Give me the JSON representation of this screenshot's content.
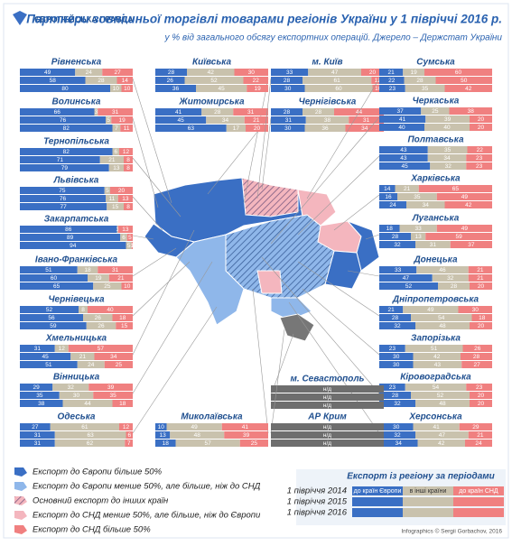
{
  "header": {
    "logo": "ЄВРОПЕЙСЬКА ПРАВДА",
    "title": "Партнери зовнішньої торгівлі товарами регіонів України у 1 півріччі 2016 р.",
    "subtitle": "у % від загального обсягу експортних операцій. Джерело – Держстат України"
  },
  "regions": [
    {
      "name": "Рівненська",
      "rows": [
        [
          49,
          24,
          27
        ],
        [
          58,
          28,
          14
        ],
        [
          80,
          10,
          10
        ]
      ]
    },
    {
      "name": "Волинська",
      "rows": [
        [
          66,
          3,
          31
        ],
        [
          76,
          5,
          19
        ],
        [
          82,
          7,
          11
        ]
      ]
    },
    {
      "name": "Тернопільська",
      "rows": [
        [
          82,
          6,
          12
        ],
        [
          71,
          21,
          8
        ],
        [
          79,
          13,
          8
        ]
      ]
    },
    {
      "name": "Львівська",
      "rows": [
        [
          75,
          5,
          20
        ],
        [
          76,
          11,
          13
        ],
        [
          77,
          15,
          8
        ]
      ]
    },
    {
      "name": "Закарпатська",
      "rows": [
        [
          86,
          1,
          13
        ],
        [
          89,
          6,
          5
        ],
        [
          94,
          5,
          1
        ]
      ]
    },
    {
      "name": "Івано-Франківська",
      "rows": [
        [
          51,
          18,
          31
        ],
        [
          60,
          19,
          21
        ],
        [
          65,
          25,
          10
        ]
      ]
    },
    {
      "name": "Чернівецька",
      "rows": [
        [
          52,
          8,
          40
        ],
        [
          56,
          26,
          18
        ],
        [
          59,
          26,
          15
        ]
      ]
    },
    {
      "name": "Хмельницька",
      "rows": [
        [
          31,
          12,
          57
        ],
        [
          45,
          21,
          34
        ],
        [
          51,
          24,
          25
        ]
      ]
    },
    {
      "name": "Вінницька",
      "rows": [
        [
          29,
          32,
          39
        ],
        [
          35,
          30,
          35
        ],
        [
          38,
          44,
          18
        ]
      ]
    },
    {
      "name": "Одеська",
      "rows": [
        [
          27,
          61,
          12
        ],
        [
          31,
          63,
          6
        ],
        [
          31,
          62,
          7
        ]
      ]
    },
    {
      "name": "Київська",
      "rows": [
        [
          28,
          42,
          30
        ],
        [
          26,
          52,
          22
        ],
        [
          36,
          45,
          19
        ]
      ]
    },
    {
      "name": "Житомирська",
      "rows": [
        [
          41,
          28,
          31
        ],
        [
          45,
          34,
          21
        ],
        [
          63,
          17,
          20
        ]
      ]
    },
    {
      "name": "Миколаївська",
      "rows": [
        [
          10,
          49,
          41
        ],
        [
          13,
          48,
          39
        ],
        [
          18,
          57,
          25
        ]
      ]
    },
    {
      "name": "м. Київ",
      "rows": [
        [
          33,
          47,
          20
        ],
        [
          28,
          61,
          11
        ],
        [
          30,
          60,
          10
        ]
      ]
    },
    {
      "name": "Чернігівська",
      "rows": [
        [
          28,
          28,
          44
        ],
        [
          31,
          38,
          31
        ],
        [
          30,
          36,
          34
        ]
      ]
    },
    {
      "name": "Сумська",
      "rows": [
        [
          21,
          19,
          60
        ],
        [
          22,
          28,
          50
        ],
        [
          23,
          35,
          42
        ]
      ]
    },
    {
      "name": "Черкаська",
      "rows": [
        [
          37,
          25,
          38
        ],
        [
          41,
          39,
          20
        ],
        [
          40,
          40,
          20
        ]
      ]
    },
    {
      "name": "Полтавська",
      "rows": [
        [
          43,
          35,
          22
        ],
        [
          43,
          34,
          23
        ],
        [
          45,
          32,
          23
        ]
      ]
    },
    {
      "name": "Харківська",
      "rows": [
        [
          14,
          21,
          65
        ],
        [
          16,
          35,
          49
        ],
        [
          24,
          34,
          42
        ]
      ]
    },
    {
      "name": "Луганська",
      "rows": [
        [
          18,
          33,
          49
        ],
        [
          28,
          13,
          59
        ],
        [
          32,
          31,
          37
        ]
      ]
    },
    {
      "name": "Донецька",
      "rows": [
        [
          33,
          46,
          21
        ],
        [
          47,
          32,
          21
        ],
        [
          52,
          28,
          20
        ]
      ]
    },
    {
      "name": "Дніпропетровська",
      "rows": [
        [
          21,
          49,
          30
        ],
        [
          28,
          54,
          18
        ],
        [
          32,
          48,
          20
        ]
      ]
    },
    {
      "name": "Запорізька",
      "rows": [
        [
          23,
          51,
          26
        ],
        [
          30,
          42,
          28
        ],
        [
          30,
          43,
          27
        ]
      ]
    },
    {
      "name": "Кіровоградська",
      "rows": [
        [
          23,
          54,
          23
        ],
        [
          28,
          52,
          20
        ],
        [
          32,
          48,
          20
        ]
      ]
    },
    {
      "name": "Херсонська",
      "rows": [
        [
          30,
          41,
          29
        ],
        [
          32,
          47,
          21
        ],
        [
          34,
          42,
          24
        ]
      ]
    },
    {
      "name": "м. Севастополь",
      "rows": [
        "н/д",
        "н/д",
        "н/д"
      ]
    },
    {
      "name": "АР Крим",
      "rows": [
        "н/д",
        "н/д",
        "н/д"
      ]
    }
  ],
  "legend": {
    "items": [
      "Експорт до Європи більше 50%",
      "Експорт до Європи менше 50%, але більше, ніж до СНД",
      "Основний експорт до інших країн",
      "Експорт до СНД менше 50%, але більше, ніж до Європи",
      "Експорт до СНД більше 50%"
    ]
  },
  "period_legend": {
    "title": "Експорт із регіону за періодами",
    "periods": [
      "1 півріччя 2014",
      "1 півріччя 2015",
      "1 півріччя 2016"
    ],
    "columns": [
      "до країн Європи",
      "в інші країни",
      "до країн СНД"
    ]
  },
  "credit": "Infographics © Sergii Gorbachov, 2016"
}
